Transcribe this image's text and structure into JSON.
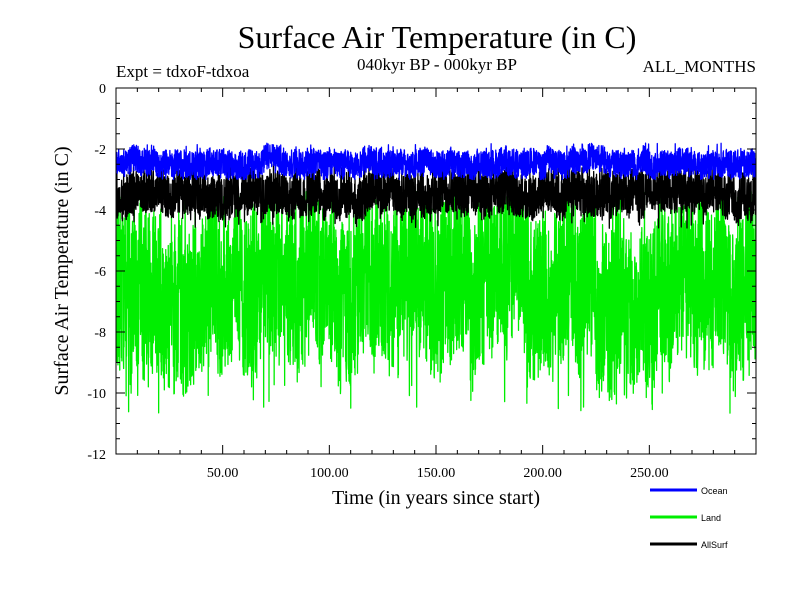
{
  "chart_data": {
    "type": "line",
    "title": "Surface Air Temperature (in C)",
    "subtitle": "040kyr BP - 000kyr BP",
    "experiment_label": "Expt = tdxoF-tdxoa",
    "months_label": "ALL_MONTHS",
    "xlabel": "Time (in years since start)",
    "ylabel": "Surface Air Temperature (in C)",
    "xlim": [
      0,
      300
    ],
    "ylim": [
      -12,
      0
    ],
    "x_ticks": [
      {
        "value": 50,
        "label": "50.00"
      },
      {
        "value": 100,
        "label": "100.00"
      },
      {
        "value": 150,
        "label": "150.00"
      },
      {
        "value": 200,
        "label": "200.00"
      },
      {
        "value": 250,
        "label": "250.00"
      }
    ],
    "y_ticks": [
      {
        "value": 0,
        "label": "0"
      },
      {
        "value": -2,
        "label": "-2"
      },
      {
        "value": -4,
        "label": "-4"
      },
      {
        "value": -6,
        "label": "-6"
      },
      {
        "value": -8,
        "label": "-8"
      },
      {
        "value": -10,
        "label": "-10"
      },
      {
        "value": -12,
        "label": "-12"
      }
    ],
    "legend_position": "bottom-right",
    "series": [
      {
        "name": "Land",
        "color": "#00ee00",
        "x_start": 0,
        "x_step": 0.0833,
        "mean": -6.6,
        "envelope_top": -3.8,
        "envelope_bottom": -9.3,
        "extreme_min": -10.7,
        "extreme_max": -3.4
      },
      {
        "name": "AllSurf",
        "color": "#000000",
        "x_start": 0,
        "x_step": 0.0833,
        "mean": -3.5,
        "envelope_top": -2.7,
        "envelope_bottom": -4.2,
        "extreme_min": -4.6,
        "extreme_max": -2.5
      },
      {
        "name": "Ocean",
        "color": "#0000ff",
        "x_start": 0,
        "x_step": 0.0833,
        "mean": -2.45,
        "envelope_top": -2.0,
        "envelope_bottom": -2.9,
        "extreme_min": -3.0,
        "extreme_max": -1.8
      }
    ],
    "legend_order": [
      "Ocean",
      "Land",
      "AllSurf"
    ]
  }
}
